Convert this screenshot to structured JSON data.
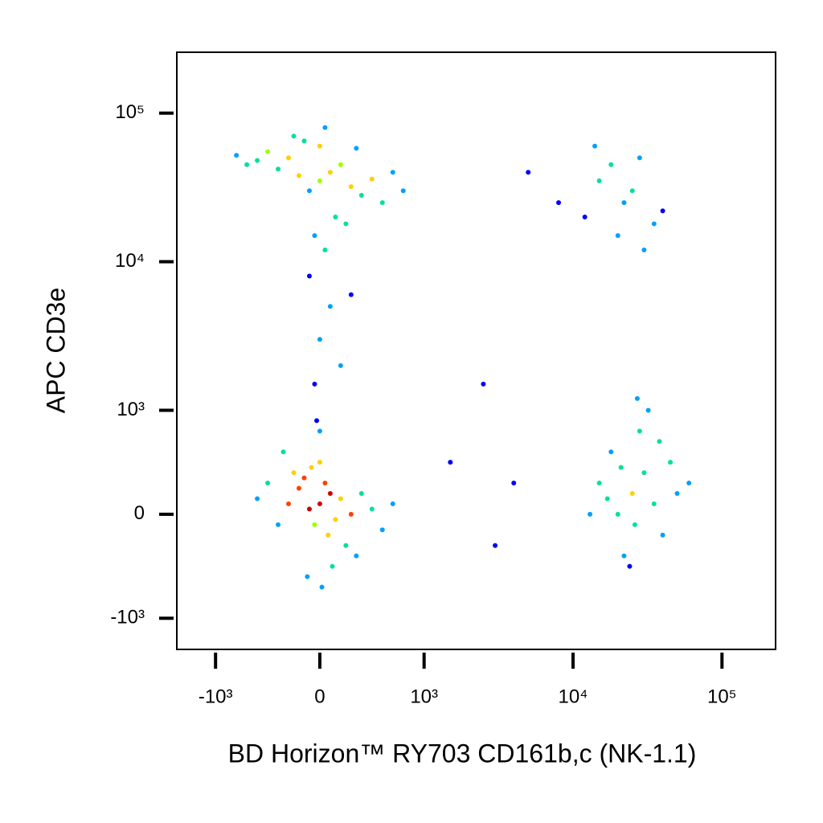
{
  "chart_data": {
    "type": "scatter",
    "xlabel": "BD Horizon™ RY703 CD161b,c (NK-1.1)",
    "ylabel": "APC CD3e",
    "xlim": [
      -1820,
      229000
    ],
    "ylim": [
      -1620,
      257000
    ],
    "xticks": [
      {
        "value": -1000,
        "label": "-10³"
      },
      0,
      {
        "value": 1000,
        "label": "10³"
      },
      {
        "value": 10000,
        "label": "10⁴"
      },
      {
        "value": 100000,
        "label": "10⁵"
      }
    ],
    "yticks": [
      {
        "value": -1000,
        "label": "-10³"
      },
      0,
      {
        "value": 1000,
        "label": "10³"
      },
      {
        "value": 10000,
        "label": "10⁴"
      },
      {
        "value": 100000,
        "label": "10⁵"
      }
    ],
    "colors": [
      "#0000ff",
      "#00a0ff",
      "#00e0a0",
      "#a0ff00",
      "#ffd000",
      "#ff4000",
      "#d00000"
    ],
    "x": [
      0,
      100,
      -100,
      50,
      -50,
      200,
      -200,
      150,
      -150,
      300,
      -300,
      0,
      80,
      -80,
      250,
      -250,
      400,
      -400,
      500,
      -500,
      350,
      -350,
      600,
      -600,
      0,
      120,
      -120,
      20,
      -30,
      700,
      0,
      100,
      -100,
      200,
      -200,
      300,
      -300,
      400,
      -400,
      500,
      -500,
      600,
      -600,
      0,
      150,
      -150,
      700,
      -700,
      800,
      -800,
      250,
      -250,
      50,
      -50,
      350,
      25000,
      30000,
      20000,
      35000,
      18000,
      40000,
      15000,
      28000,
      22000,
      50000,
      32000,
      26000,
      45000,
      17000,
      60000,
      24000,
      38000,
      21000,
      27000,
      13000,
      12000,
      15000,
      20000,
      25000,
      30000,
      18000,
      35000,
      22000,
      40000,
      14000,
      5000,
      8000,
      28000,
      0,
      100,
      -100,
      200,
      50,
      -50,
      300,
      1500,
      2500,
      4000,
      3000
    ],
    "y": [
      100,
      200,
      50,
      300,
      -100,
      150,
      250,
      -50,
      350,
      0,
      100,
      500,
      -200,
      450,
      -300,
      400,
      200,
      -100,
      50,
      300,
      -400,
      600,
      -150,
      150,
      800,
      -500,
      -600,
      -700,
      900,
      100,
      35000,
      40000,
      30000,
      45000,
      38000,
      32000,
      50000,
      28000,
      42000,
      36000,
      55000,
      25000,
      48000,
      60000,
      20000,
      65000,
      40000,
      45000,
      30000,
      52000,
      18000,
      70000,
      80000,
      15000,
      58000,
      200,
      400,
      0,
      100,
      600,
      -200,
      300,
      800,
      -400,
      200,
      1000,
      -100,
      500,
      150,
      300,
      -500,
      700,
      450,
      1200,
      0,
      20000,
      35000,
      15000,
      30000,
      12000,
      45000,
      18000,
      25000,
      22000,
      60000,
      40000,
      25000,
      50000,
      3000,
      5000,
      8000,
      2000,
      12000,
      1500,
      6000,
      500,
      1500,
      300,
      -300
    ]
  }
}
